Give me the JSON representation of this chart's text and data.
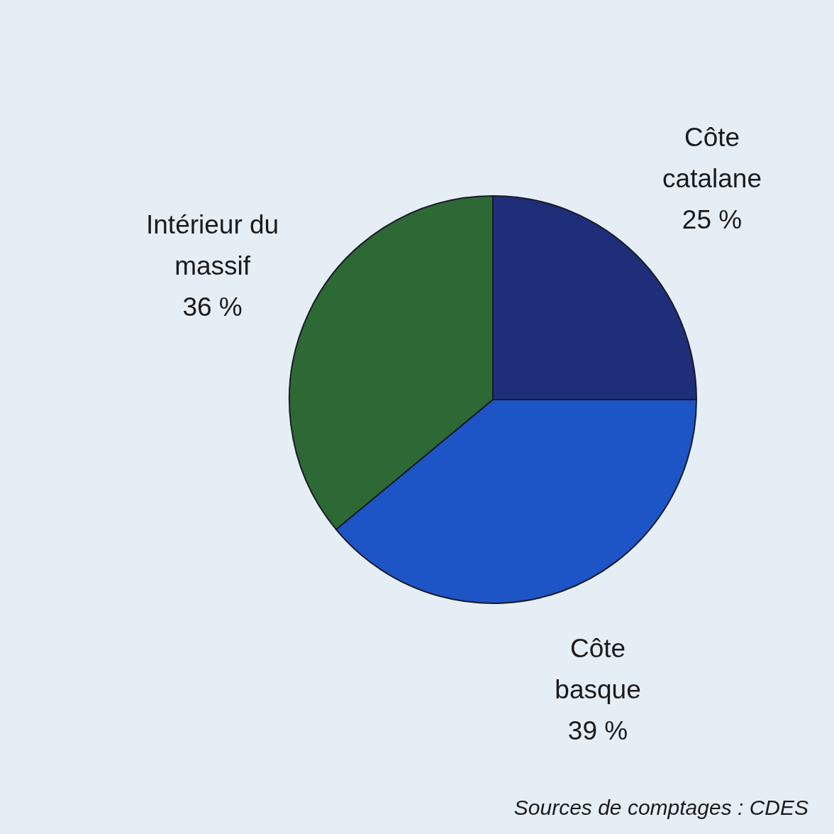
{
  "chart_data": {
    "type": "pie",
    "categories": [
      "Côte catalane",
      "Côte basque",
      "Intérieur du massif"
    ],
    "values": [
      25,
      39,
      36
    ],
    "colors": [
      "#1f2e78",
      "#1d55c6",
      "#2d6934"
    ],
    "value_labels": [
      "25 %",
      "39 %",
      "36 %"
    ],
    "annotations": [
      "Sources de comptages : CDES"
    ]
  }
}
